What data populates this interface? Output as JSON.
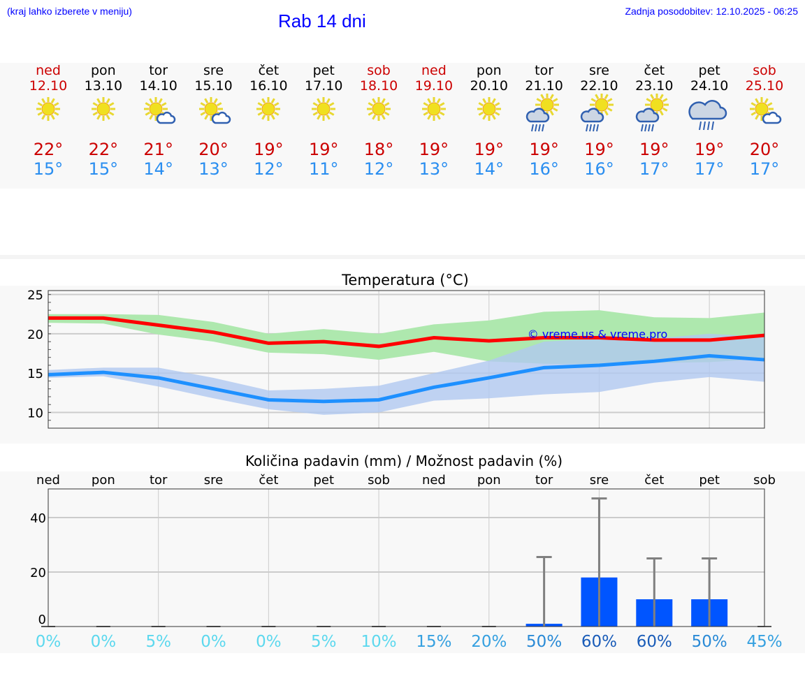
{
  "header": {
    "hint": "(kraj lahko izberete v meniju)",
    "title": "Rab 14 dni",
    "updated": "Zadnja posodobitev: 12.10.2025 - 06:25"
  },
  "days": [
    {
      "name": "ned",
      "date": "12.10",
      "weekend": true,
      "icon": "sun-icon",
      "max": "22°",
      "min": "15°"
    },
    {
      "name": "pon",
      "date": "13.10",
      "weekend": false,
      "icon": "sun-icon",
      "max": "22°",
      "min": "15°"
    },
    {
      "name": "tor",
      "date": "14.10",
      "weekend": false,
      "icon": "sun-cloud-icon",
      "max": "21°",
      "min": "14°"
    },
    {
      "name": "sre",
      "date": "15.10",
      "weekend": false,
      "icon": "sun-cloud-icon",
      "max": "20°",
      "min": "13°"
    },
    {
      "name": "čet",
      "date": "16.10",
      "weekend": false,
      "icon": "sun-icon",
      "max": "19°",
      "min": "12°"
    },
    {
      "name": "pet",
      "date": "17.10",
      "weekend": false,
      "icon": "sun-icon",
      "max": "19°",
      "min": "11°"
    },
    {
      "name": "sob",
      "date": "18.10",
      "weekend": true,
      "icon": "sun-icon",
      "max": "18°",
      "min": "12°"
    },
    {
      "name": "ned",
      "date": "19.10",
      "weekend": true,
      "icon": "sun-icon",
      "max": "19°",
      "min": "13°"
    },
    {
      "name": "pon",
      "date": "20.10",
      "weekend": false,
      "icon": "sun-icon",
      "max": "19°",
      "min": "14°"
    },
    {
      "name": "tor",
      "date": "21.10",
      "weekend": false,
      "icon": "sun-rain-icon",
      "max": "19°",
      "min": "16°"
    },
    {
      "name": "sre",
      "date": "22.10",
      "weekend": false,
      "icon": "sun-rain-icon",
      "max": "19°",
      "min": "16°"
    },
    {
      "name": "čet",
      "date": "23.10",
      "weekend": false,
      "icon": "sun-rain-icon",
      "max": "19°",
      "min": "17°"
    },
    {
      "name": "pet",
      "date": "24.10",
      "weekend": false,
      "icon": "cloud-rain-icon",
      "max": "19°",
      "min": "17°"
    },
    {
      "name": "sob",
      "date": "25.10",
      "weekend": true,
      "icon": "sun-cloud-icon",
      "max": "20°",
      "min": "17°"
    }
  ],
  "colors": {
    "max": "#ff0000",
    "min": "#1e90ff",
    "maxBand": "#aee8ae",
    "minBand": "#b0c8f0",
    "bar": "#0055ff",
    "err": "#808080"
  },
  "chart_data": [
    {
      "type": "line",
      "title": "Temperatura (°C)",
      "ylim": [
        8,
        25.5
      ],
      "yticks": [
        10,
        15,
        20,
        25
      ],
      "watermark": "© vreme.us & vreme.pro",
      "series": [
        {
          "name": "max",
          "values": [
            22,
            22,
            21.1,
            20.2,
            18.8,
            19,
            18.4,
            19.5,
            19.1,
            19.5,
            19.5,
            19.2,
            19.2,
            19.8
          ],
          "band_high": [
            22.5,
            22.5,
            22.4,
            21.5,
            20,
            20.6,
            20,
            21.2,
            21.7,
            22.8,
            23,
            22.1,
            22,
            22.7
          ],
          "band_low": [
            21.4,
            21.3,
            19.9,
            19,
            17.6,
            17.4,
            16.7,
            17.7,
            16.5,
            16.2,
            16.1,
            16.3,
            16.4,
            16.8
          ]
        },
        {
          "name": "min",
          "values": [
            14.8,
            15.1,
            14.4,
            13,
            11.6,
            11.4,
            11.6,
            13.2,
            14.4,
            15.7,
            16,
            16.5,
            17.2,
            16.7
          ],
          "band_high": [
            15.4,
            15.7,
            15.7,
            14.4,
            12.8,
            13,
            13.4,
            15,
            16.6,
            19,
            19.4,
            19.4,
            20,
            19.6
          ],
          "band_low": [
            14.4,
            14.6,
            13.3,
            11.8,
            10.4,
            9.7,
            10,
            11.5,
            11.8,
            12.3,
            12.6,
            13.8,
            14.5,
            13.9
          ]
        }
      ]
    },
    {
      "type": "bar",
      "title": "Količina padavin (mm) / Možnost padavin (%)",
      "ylim": [
        0,
        50.5
      ],
      "yticks": [
        0,
        20,
        40
      ],
      "categories": [
        "ned",
        "pon",
        "tor",
        "sre",
        "čet",
        "pet",
        "sob",
        "ned",
        "pon",
        "tor",
        "sre",
        "čet",
        "pet",
        "sob"
      ],
      "values": [
        0,
        0,
        0,
        0,
        0,
        0,
        0,
        0,
        0,
        1,
        18,
        10,
        10,
        0
      ],
      "error_max": [
        0,
        0,
        0,
        0,
        0,
        0,
        0,
        0,
        0,
        25.5,
        47,
        25,
        25,
        0
      ],
      "probability": [
        "0%",
        "0%",
        "5%",
        "0%",
        "0%",
        "5%",
        "10%",
        "15%",
        "20%",
        "50%",
        "60%",
        "60%",
        "50%",
        "45%"
      ]
    }
  ]
}
